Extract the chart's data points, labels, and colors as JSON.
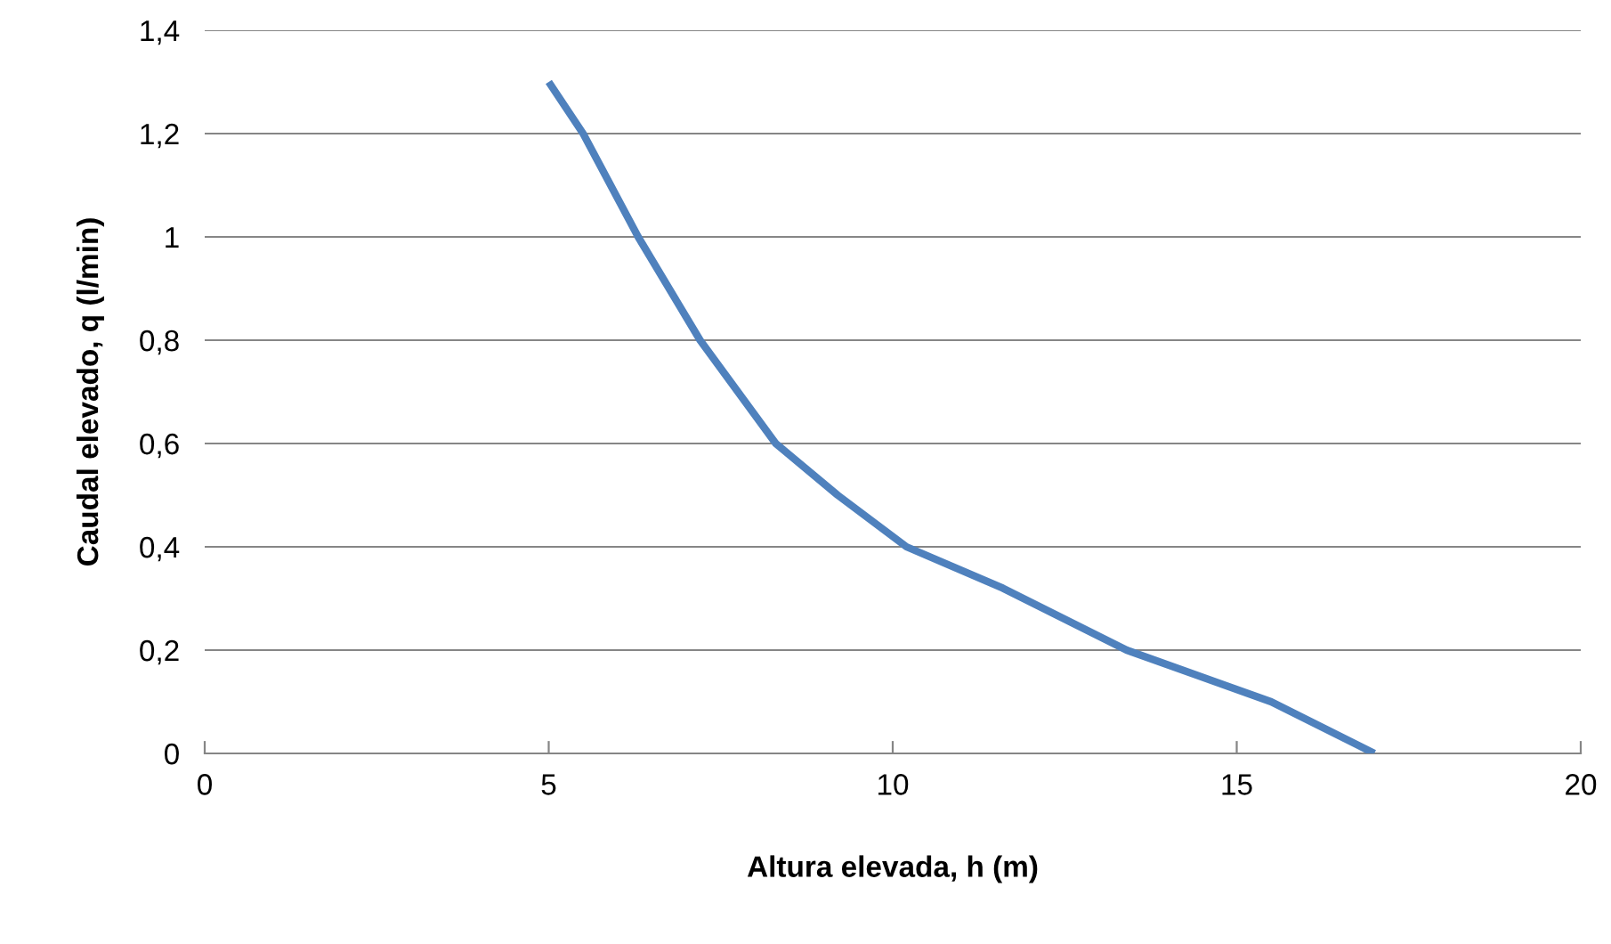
{
  "chart_data": {
    "type": "line",
    "xlabel": "Altura elevada, h (m)",
    "ylabel": "Caudal elevado, q (l/min)",
    "series": [
      {
        "color": "#4f81bd",
        "x": [
          5,
          5.5,
          6.3,
          7.2,
          8.3,
          9.2,
          10.2,
          11.6,
          13.4,
          15.5,
          17
        ],
        "values": [
          1.3,
          1.2,
          1.0,
          0.8,
          0.6,
          0.5,
          0.4,
          0.32,
          0.2,
          0.1,
          0
        ]
      }
    ],
    "xlim": [
      0,
      20
    ],
    "xticks": [
      0,
      5,
      10,
      15,
      20
    ],
    "ylim": [
      0,
      1.4
    ],
    "yticks": [
      {
        "value": 0,
        "label": "0"
      },
      {
        "value": 0.2,
        "label": "0,2"
      },
      {
        "value": 0.4,
        "label": "0,4"
      },
      {
        "value": 0.6,
        "label": "0,6"
      },
      {
        "value": 0.8,
        "label": "0,8"
      },
      {
        "value": 1,
        "label": "1"
      },
      {
        "value": 1.2,
        "label": "1,2"
      },
      {
        "value": 1.4,
        "label": "1,4"
      }
    ],
    "grid": "y",
    "marker": "none",
    "line_style": "solid",
    "legend": false
  }
}
